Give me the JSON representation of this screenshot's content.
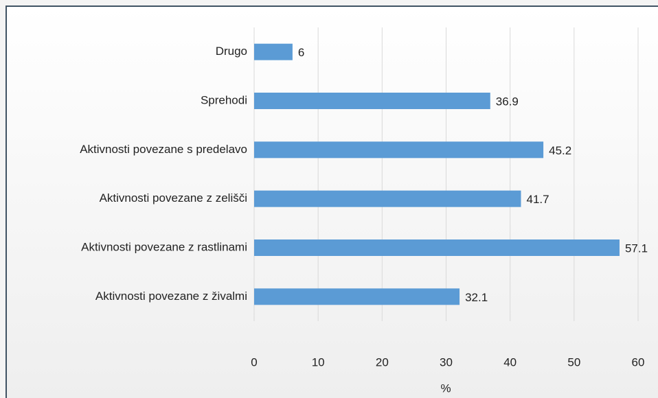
{
  "chart_data": {
    "type": "bar",
    "orientation": "horizontal",
    "categories": [
      "Drugo",
      "Sprehodi",
      "Aktivnosti povezane s predelavo",
      "Aktivnosti povezane z zelišči",
      "Aktivnosti povezane z rastlinami",
      "Aktivnosti povezane z živalmi"
    ],
    "values": [
      6,
      36.9,
      45.2,
      41.7,
      57.1,
      32.1
    ],
    "color": "#5b9bd5",
    "xlabel": "%",
    "xlim": [
      0,
      60
    ],
    "xticks": [
      0,
      10,
      20,
      30,
      40,
      50,
      60
    ],
    "grid": true
  }
}
